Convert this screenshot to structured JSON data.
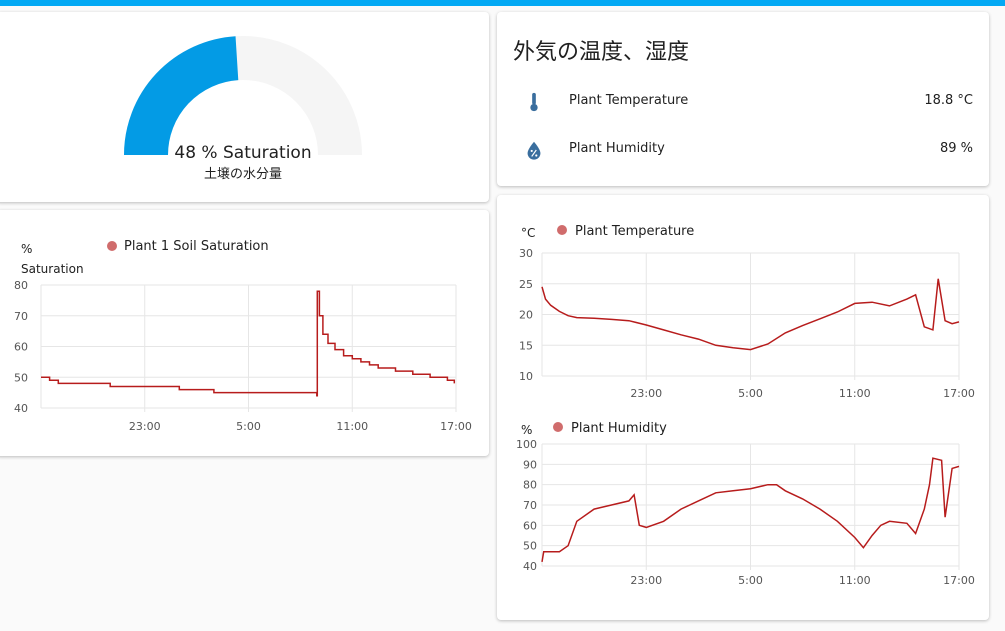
{
  "colors": {
    "accent": "#03a9f4",
    "gauge_fill": "#039be5",
    "gauge_track": "#f5f5f5",
    "series_line": "#b71c1c",
    "legend_dot": "#d06c6c",
    "icon": "#3a6e9e"
  },
  "gauge": {
    "value": 48,
    "unit_label": "%",
    "value_text": "48 % Saturation",
    "name": "土壌の水分量",
    "min": 0,
    "max": 100
  },
  "env_card": {
    "title": "外気の温度、湿度",
    "entities": [
      {
        "icon": "thermometer-icon",
        "name": "Plant Temperature",
        "value": "18.8 °C"
      },
      {
        "icon": "water-percent-icon",
        "name": "Plant Humidity",
        "value": "89 %"
      }
    ]
  },
  "chart_data": [
    {
      "type": "line",
      "id": "soil",
      "unit_label": "%",
      "ylabel": "Saturation",
      "legend": "Plant 1 Soil Saturation",
      "ylim": [
        40,
        80
      ],
      "yticks": [
        "40",
        "50",
        "60",
        "70",
        "80"
      ],
      "xticks": [
        "23:00",
        "5:00",
        "11:00",
        "17:00"
      ],
      "xtick_hours": [
        6,
        12,
        18,
        24
      ],
      "xlim_hours": [
        0,
        24
      ],
      "series": [
        {
          "name": "Plant 1 Soil Saturation",
          "points": [
            [
              0,
              50
            ],
            [
              0.5,
              49
            ],
            [
              1.0,
              48
            ],
            [
              4.0,
              47
            ],
            [
              6.0,
              47
            ],
            [
              8.0,
              46
            ],
            [
              10.0,
              45
            ],
            [
              13.5,
              45
            ],
            [
              15.8,
              45
            ],
            [
              15.95,
              44
            ],
            [
              15.98,
              78
            ],
            [
              16.1,
              70
            ],
            [
              16.3,
              64
            ],
            [
              16.6,
              61
            ],
            [
              17.0,
              59
            ],
            [
              17.5,
              57
            ],
            [
              18.0,
              56
            ],
            [
              18.5,
              55
            ],
            [
              19.0,
              54
            ],
            [
              19.5,
              53
            ],
            [
              20.5,
              52
            ],
            [
              21.5,
              51
            ],
            [
              22.5,
              50
            ],
            [
              23.5,
              49
            ],
            [
              23.9,
              48
            ]
          ]
        }
      ]
    },
    {
      "type": "line",
      "id": "temp",
      "unit_label": "°C",
      "legend": "Plant Temperature",
      "ylim": [
        10,
        30
      ],
      "yticks": [
        "10",
        "15",
        "20",
        "25",
        "30"
      ],
      "xticks": [
        "23:00",
        "5:00",
        "11:00",
        "17:00"
      ],
      "xtick_hours": [
        6,
        12,
        18,
        24
      ],
      "xlim_hours": [
        0,
        24
      ],
      "series": [
        {
          "name": "Plant Temperature",
          "points": [
            [
              0,
              24.5
            ],
            [
              0.2,
              22.5
            ],
            [
              0.5,
              21.5
            ],
            [
              1,
              20.5
            ],
            [
              1.5,
              19.8
            ],
            [
              2,
              19.5
            ],
            [
              3,
              19.4
            ],
            [
              4,
              19.2
            ],
            [
              5,
              19
            ],
            [
              6,
              18.3
            ],
            [
              7,
              17.5
            ],
            [
              8,
              16.7
            ],
            [
              9,
              16
            ],
            [
              10,
              15
            ],
            [
              11,
              14.6
            ],
            [
              12,
              14.3
            ],
            [
              13,
              15.2
            ],
            [
              14,
              17
            ],
            [
              15,
              18.2
            ],
            [
              16,
              19.3
            ],
            [
              17,
              20.4
            ],
            [
              18,
              21.8
            ],
            [
              19,
              22
            ],
            [
              20,
              21.4
            ],
            [
              21,
              22.5
            ],
            [
              21.5,
              23.2
            ],
            [
              22,
              18
            ],
            [
              22.5,
              17.5
            ],
            [
              22.8,
              25.8
            ],
            [
              23.2,
              19
            ],
            [
              23.6,
              18.5
            ],
            [
              24,
              18.8
            ]
          ]
        }
      ]
    },
    {
      "type": "line",
      "id": "hum",
      "unit_label": "%",
      "legend": "Plant Humidity",
      "ylim": [
        40,
        100
      ],
      "yticks": [
        "40",
        "50",
        "60",
        "70",
        "80",
        "90",
        "100"
      ],
      "xticks": [
        "23:00",
        "5:00",
        "11:00",
        "17:00"
      ],
      "xtick_hours": [
        6,
        12,
        18,
        24
      ],
      "xlim_hours": [
        0,
        24
      ],
      "series": [
        {
          "name": "Plant Humidity",
          "points": [
            [
              0,
              42
            ],
            [
              0.1,
              47
            ],
            [
              1,
              47
            ],
            [
              1.5,
              50
            ],
            [
              2,
              62
            ],
            [
              3,
              68
            ],
            [
              4,
              70
            ],
            [
              5,
              72
            ],
            [
              5.3,
              75
            ],
            [
              5.6,
              60
            ],
            [
              6,
              59
            ],
            [
              7,
              62
            ],
            [
              8,
              68
            ],
            [
              9,
              72
            ],
            [
              10,
              76
            ],
            [
              11,
              77
            ],
            [
              12,
              78
            ],
            [
              13,
              80
            ],
            [
              13.5,
              80
            ],
            [
              14,
              77
            ],
            [
              15,
              73
            ],
            [
              16,
              68
            ],
            [
              17,
              62
            ],
            [
              18,
              54
            ],
            [
              18.5,
              49
            ],
            [
              19,
              55
            ],
            [
              19.5,
              60
            ],
            [
              20,
              62
            ],
            [
              21,
              61
            ],
            [
              21.5,
              56
            ],
            [
              22,
              68
            ],
            [
              22.3,
              80
            ],
            [
              22.5,
              93
            ],
            [
              23.0,
              92
            ],
            [
              23.2,
              64
            ],
            [
              23.6,
              88
            ],
            [
              24,
              89
            ]
          ]
        }
      ]
    }
  ]
}
